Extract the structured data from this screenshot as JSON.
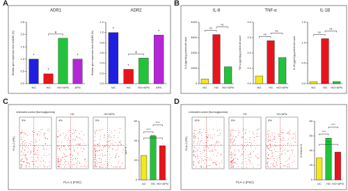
{
  "panel_labels": [
    "A",
    "B",
    "C",
    "D"
  ],
  "chart_data": [
    {
      "type": "bar",
      "title": "ADR1",
      "y_label": "Relative gene expression  level of ADR1 (%)",
      "categories": [
        "NG",
        "HG",
        "HG+APN",
        "APN"
      ],
      "values": [
        1.0,
        0.4,
        1.85,
        1.0
      ],
      "colors": [
        "#1f1fe0",
        "#e8141b",
        "#22c33a",
        "#b427d8"
      ],
      "ylim": [
        0,
        2.5
      ],
      "yticks": [
        {
          "value": 0,
          "label": "0.0"
        },
        0.5,
        {
          "value": 1,
          "label": "1.0"
        },
        1.5,
        {
          "value": 2,
          "label": "2.0"
        },
        2.5
      ],
      "bar_marks": [
        "*",
        "*",
        null,
        "*"
      ],
      "bracket_labels": [
        "ϕ"
      ]
    },
    {
      "type": "bar",
      "title": "ADR2",
      "y_label": "Relative gene expression  level of ADR2 (%)",
      "categories": [
        "NG",
        "HG",
        "HG+APN",
        "APN"
      ],
      "values": [
        1.0,
        0.28,
        0.5,
        0.95
      ],
      "colors": [
        "#1f1fe0",
        "#e8141b",
        "#22c33a",
        "#b427d8"
      ],
      "ylim": [
        0,
        1.2
      ],
      "yticks": [
        {
          "value": 0,
          "label": "0.0"
        },
        0.2,
        0.4,
        0.6,
        0.8,
        {
          "value": 1,
          "label": "1.0"
        },
        1.2
      ],
      "bar_marks": [
        "*",
        "*",
        null,
        "*"
      ],
      "bracket_labels": [
        "ϕ"
      ]
    },
    {
      "type": "bar",
      "title": "IL-8",
      "y_label": "IL-8 (pg/ml/µg protein/cell count",
      "categories": [
        "NG",
        "HG",
        "HG+APN"
      ],
      "values": [
        300,
        3200,
        1100
      ],
      "colors": [
        "#f2e81c",
        "#e8141b",
        "#22c33a"
      ],
      "ylim": [
        0,
        4000
      ],
      "yticks": [
        0,
        1000,
        2000,
        3000,
        4000
      ],
      "bar_marks": [
        null,
        null,
        null
      ],
      "bracket_labels": [
        "ns",
        "ns"
      ]
    },
    {
      "type": "bar",
      "title": "TNF-α",
      "y_label": "TNF-α (pg/ml/µg protein/cell count",
      "categories": [
        "NG",
        "HG",
        "HG+APN"
      ],
      "values": [
        0.05,
        0.28,
        0.17
      ],
      "colors": [
        "#f2e81c",
        "#e8141b",
        "#22c33a"
      ],
      "ylim": [
        0,
        0.4
      ],
      "yticks": [
        {
          "value": 0,
          "label": "0.0"
        },
        0.1,
        0.2,
        0.3,
        0.4
      ],
      "bar_marks": [
        null,
        null,
        null
      ],
      "bracket_labels": [
        "ns",
        "ns"
      ]
    },
    {
      "type": "bar",
      "title": "IL-1B",
      "y_label": "IL-1B (pg/ml/µg protein/cell count",
      "categories": [
        "NG",
        "HG",
        "HG+APN"
      ],
      "values": [
        0.05,
        1.1,
        0.05
      ],
      "colors": [
        "#f2e81c",
        "#e8141b",
        "#22c33a"
      ],
      "ylim": [
        0,
        1.5
      ],
      "yticks": [
        {
          "value": 0,
          "label": "0.0"
        },
        0.5,
        {
          "value": 1,
          "label": "1.0"
        },
        1.5
      ],
      "bar_marks": [
        null,
        null,
        null
      ],
      "bracket_labels": [
        "ns",
        "ns"
      ]
    },
    {
      "type": "bar",
      "y_label": "DCF %",
      "categories": [
        "UC",
        "HG",
        "HG+APN"
      ],
      "values": [
        25,
        45,
        35
      ],
      "colors": [
        "#f2e81c",
        "#22c33a",
        "#e8141b"
      ],
      "ylim": [
        0,
        60
      ],
      "yticks": [
        0,
        20,
        40,
        60
      ],
      "bar_marks": [
        null,
        null,
        null
      ],
      "bracket_labels": [
        "****",
        "****",
        "****"
      ]
    },
    {
      "type": "bar",
      "y_label": "E-Selectin %",
      "categories": [
        "UC",
        "HG",
        "HG+APN"
      ],
      "values": [
        30,
        57,
        38
      ],
      "colors": [
        "#f2e81c",
        "#22c33a",
        "#e8141b"
      ],
      "ylim": [
        0,
        80
      ],
      "yticks": [
        0,
        20,
        40,
        60,
        80
      ],
      "bar_marks": [
        null,
        null,
        null
      ],
      "bracket_labels": [
        "****",
        "****",
        "****"
      ]
    }
  ],
  "flow": [
    {
      "titles": [
        "Untreated control (Normoglycemia)",
        "HG",
        "HG+APN"
      ],
      "percents": [
        "3%",
        "4%",
        "5%"
      ],
      "x_label": "FLA-1 (FSC)",
      "y_label": "FLA-2 (PE)"
    },
    {
      "titles": [
        "Untreated control (Normoglycemia)",
        "HG",
        "HG+APN"
      ],
      "percents": [
        "10%",
        "5%",
        "5%"
      ],
      "x_label": "FLA-1 (FSC)",
      "y_label": "FLA-2 (PE)"
    }
  ]
}
